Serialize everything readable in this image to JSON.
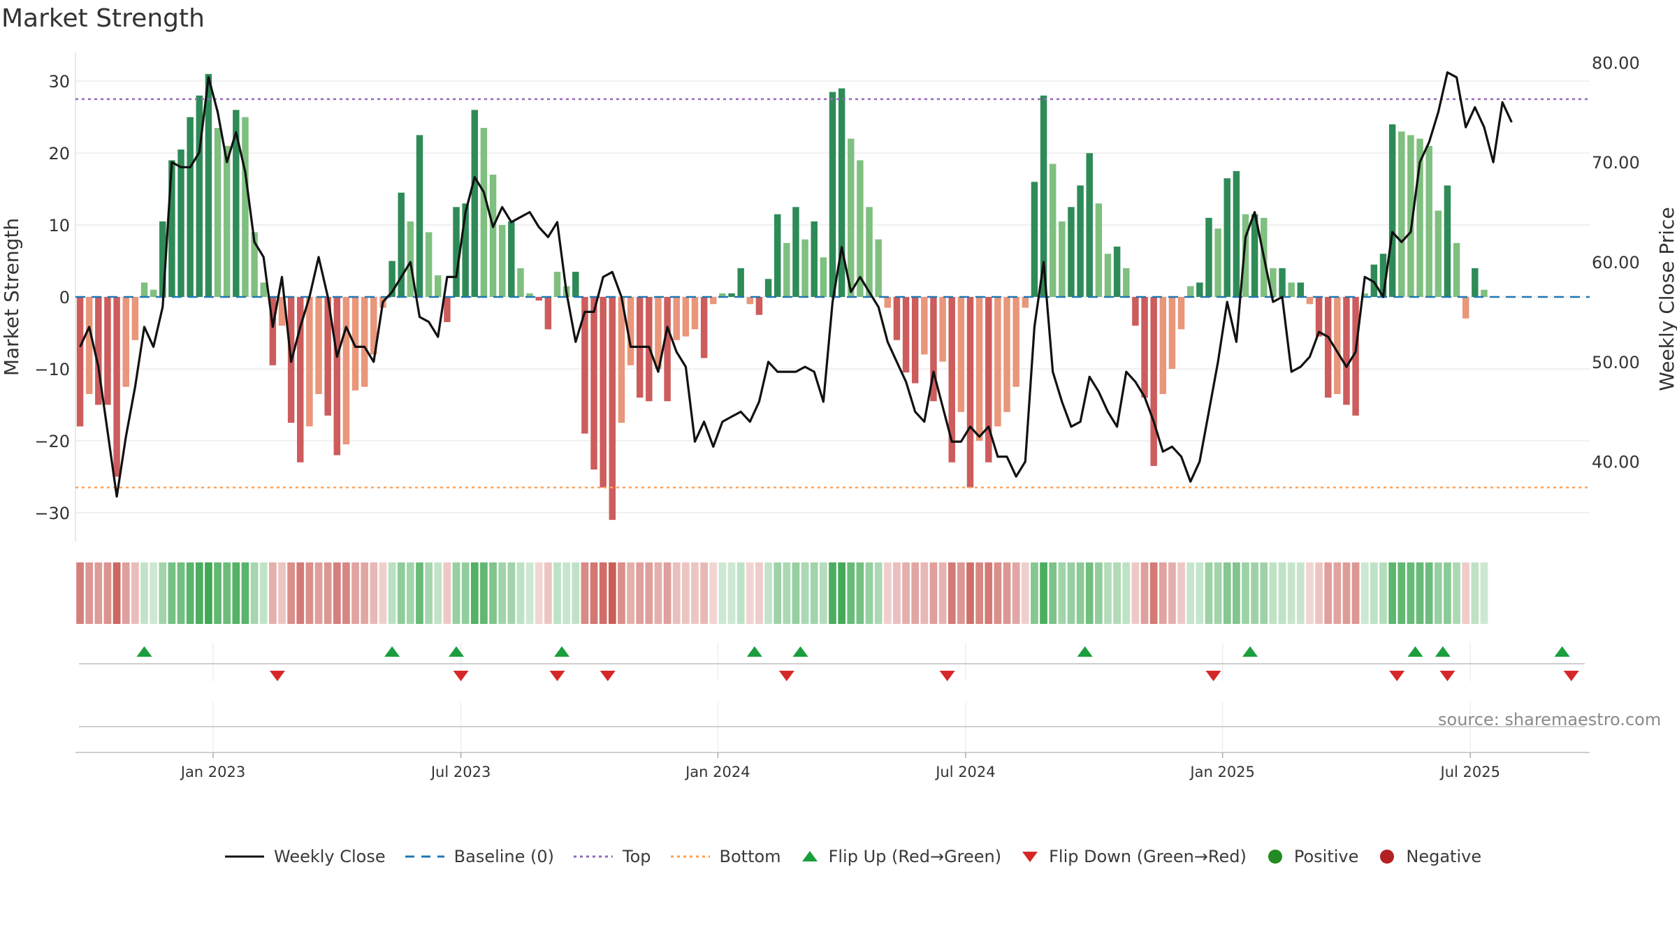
{
  "chart_data": {
    "type": "bar",
    "title": "Market Strength",
    "ylabel_left": "Market Strength",
    "ylabel_right": "Weekly Close Price",
    "source": "source: sharemaestro.com",
    "ylim_left": [
      -34,
      34
    ],
    "ylim_right": [
      32,
      81
    ],
    "yticks_left": [
      30,
      20,
      10,
      0,
      -10,
      -20,
      -30
    ],
    "yticks_left_labels": [
      "30",
      "20",
      "10",
      "0",
      "−10",
      "−20",
      "−30"
    ],
    "yticks_right": [
      80,
      70,
      60,
      50,
      40
    ],
    "yticks_right_labels": [
      "80.00",
      "70.00",
      "60.00",
      "50.00",
      "40.00"
    ],
    "x_range": [
      0,
      165
    ],
    "xticks": [
      {
        "label": "Jan 2023",
        "x": 15
      },
      {
        "label": "Jul 2023",
        "x": 42
      },
      {
        "label": "Jan 2024",
        "x": 70
      },
      {
        "label": "Jul 2024",
        "x": 97
      },
      {
        "label": "Jan 2025",
        "x": 125
      },
      {
        "label": "Jul 2025",
        "x": 152
      }
    ],
    "top_line": 27.5,
    "bottom_line": -26.5,
    "strength_values": [
      -18,
      -13.5,
      -15,
      -15,
      -25,
      -12.5,
      -6,
      2,
      1,
      10.5,
      19,
      20.5,
      25,
      28,
      31,
      23.5,
      21,
      26,
      25,
      9,
      2,
      -9.5,
      -4,
      -17.5,
      -23,
      -18,
      -13.5,
      -16.5,
      -22,
      -20.5,
      -13,
      -12.5,
      -8,
      -1.5,
      5,
      14.5,
      10.5,
      22.5,
      9,
      3,
      -3.5,
      12.5,
      13,
      26,
      23.5,
      17,
      10,
      10.5,
      4,
      0.5,
      -0.5,
      -4.5,
      3.5,
      1.5,
      3.5,
      -19,
      -24,
      -26.5,
      -31,
      -17.5,
      -9.5,
      -14,
      -14.5,
      -10,
      -14.5,
      -6,
      -5.5,
      -4.5,
      -8.5,
      -1,
      0.5,
      0.5,
      4,
      -1,
      -2.5,
      2.5,
      11.5,
      7.5,
      12.5,
      8,
      10.5,
      5.5,
      28.5,
      29,
      22,
      19,
      12.5,
      8,
      -1.5,
      -6,
      -10.5,
      -12,
      -8,
      -14.5,
      -9,
      -23,
      -16,
      -26.5,
      -20,
      -23,
      -18,
      -16,
      -12.5,
      -1.5,
      16,
      28,
      18.5,
      10.5,
      12.5,
      15.5,
      20,
      13,
      6,
      7,
      4,
      -4,
      -14,
      -23.5,
      -13.5,
      -10,
      -4.5,
      1.5,
      2,
      11,
      9.5,
      16.5,
      17.5,
      11.5,
      11.5,
      11,
      4,
      4,
      2,
      2,
      -1,
      -5.5,
      -14,
      -13.5,
      -15,
      -16.5,
      0.5,
      4.5,
      6,
      24,
      23,
      22.5,
      22,
      21,
      12,
      15.5,
      7.5,
      -3,
      4,
      1
    ],
    "weekly_close": [
      51.5,
      53.5,
      49.5,
      43,
      36.5,
      42.5,
      47.5,
      53.5,
      51.5,
      55.5,
      70,
      69.5,
      69.5,
      71,
      78.5,
      75,
      70,
      73,
      69,
      62,
      60.5,
      53.5,
      58.5,
      50,
      53.5,
      56.5,
      60.5,
      56.5,
      50.5,
      53.5,
      51.5,
      51.5,
      50,
      56,
      57,
      58.5,
      60,
      54.5,
      54,
      52.5,
      58.5,
      58.5,
      65,
      68.5,
      67,
      63.5,
      65.5,
      64,
      64.5,
      65,
      63.5,
      62.5,
      64,
      57,
      52,
      55,
      55,
      58.5,
      59,
      56.5,
      51.5,
      51.5,
      51.5,
      49,
      53.5,
      51,
      49.5,
      42,
      44,
      41.5,
      44,
      44.5,
      45,
      44,
      46,
      50,
      49,
      49,
      49,
      49.5,
      49,
      46,
      56,
      61.5,
      57,
      58.5,
      57,
      55.5,
      52,
      50,
      48,
      45,
      44,
      49,
      45.5,
      42,
      42,
      43.5,
      42.5,
      43.5,
      40.5,
      40.5,
      38.5,
      40,
      53.5,
      60,
      49,
      46,
      43.5,
      44,
      48.5,
      47,
      45,
      43.5,
      49,
      48,
      46.5,
      44,
      41,
      41.5,
      40.5,
      38,
      40,
      45,
      50,
      56,
      52,
      62.5,
      65,
      60.5,
      56,
      56.5,
      49,
      49.5,
      50.5,
      53,
      52.5,
      51,
      49.5,
      51,
      58.5,
      58,
      56.5,
      63,
      62,
      63,
      70,
      72,
      75,
      79,
      78.5,
      73.5,
      75.5,
      73.5,
      70,
      76,
      74
    ],
    "heatmap_values": [
      -22,
      -16,
      -15,
      -17,
      -28,
      -14,
      -7,
      3,
      1,
      10,
      19,
      20,
      25,
      28,
      30,
      23,
      21,
      26,
      25,
      9,
      3,
      -10,
      -5,
      -18,
      -23,
      -18,
      -14,
      -16,
      -22,
      -20,
      -13,
      -12,
      -8,
      -2,
      5,
      14,
      10,
      22,
      9,
      3,
      -4,
      12,
      13,
      26,
      23,
      17,
      10,
      10,
      4,
      1,
      -1,
      -5,
      4,
      2,
      4,
      -19,
      -24,
      -26,
      -30,
      -18,
      -10,
      -14,
      -14,
      -10,
      -14,
      -6,
      -5,
      -5,
      -8,
      -1,
      1,
      1,
      4,
      -1,
      -3,
      3,
      11,
      8,
      12,
      8,
      10,
      6,
      28,
      29,
      22,
      19,
      12,
      8,
      -2,
      -6,
      -10,
      -12,
      -8,
      -14,
      -9,
      -23,
      -16,
      -26,
      -20,
      -23,
      -18,
      -16,
      -12,
      -2,
      16,
      28,
      18,
      10,
      12,
      15,
      20,
      13,
      6,
      7,
      4,
      -4,
      -14,
      -23,
      -13,
      -10,
      -4,
      2,
      2,
      11,
      10,
      16,
      17,
      11,
      11,
      11,
      4,
      4,
      2,
      2,
      -1,
      -5,
      -14,
      -13,
      -15,
      -16,
      1,
      4,
      6,
      24,
      23,
      22,
      22,
      21,
      12,
      15,
      8,
      -3,
      4,
      1
    ],
    "flip_up_x": [
      7.5,
      34.5,
      41.5,
      53,
      74,
      79,
      110,
      128,
      146,
      149,
      162
    ],
    "flip_down_x": [
      22,
      42,
      52.5,
      58,
      77.5,
      95,
      124,
      144,
      149.5,
      163
    ],
    "legend": [
      {
        "label": "Weekly Close",
        "symbol": "line",
        "color": "#111111"
      },
      {
        "label": "Baseline (0)",
        "symbol": "dash",
        "color": "#1f77b4"
      },
      {
        "label": "Top",
        "symbol": "dot",
        "color": "#9467bd"
      },
      {
        "label": "Bottom",
        "symbol": "dot",
        "color": "#ff9f4a"
      },
      {
        "label": "Flip Up (Red→Green)",
        "symbol": "tri-up",
        "color": "#1b9e3e"
      },
      {
        "label": "Flip Down (Green→Red)",
        "symbol": "tri-down",
        "color": "#d62728"
      },
      {
        "label": "Positive",
        "symbol": "circle",
        "color": "#228b22"
      },
      {
        "label": "Negative",
        "symbol": "circle",
        "color": "#b22222"
      }
    ]
  },
  "colors": {
    "pos_dark": "#2e8b57",
    "pos_light": "#7fbf7f",
    "neg_dark": "#cd5c5c",
    "neg_light": "#e9967a",
    "close_line": "#111111"
  }
}
